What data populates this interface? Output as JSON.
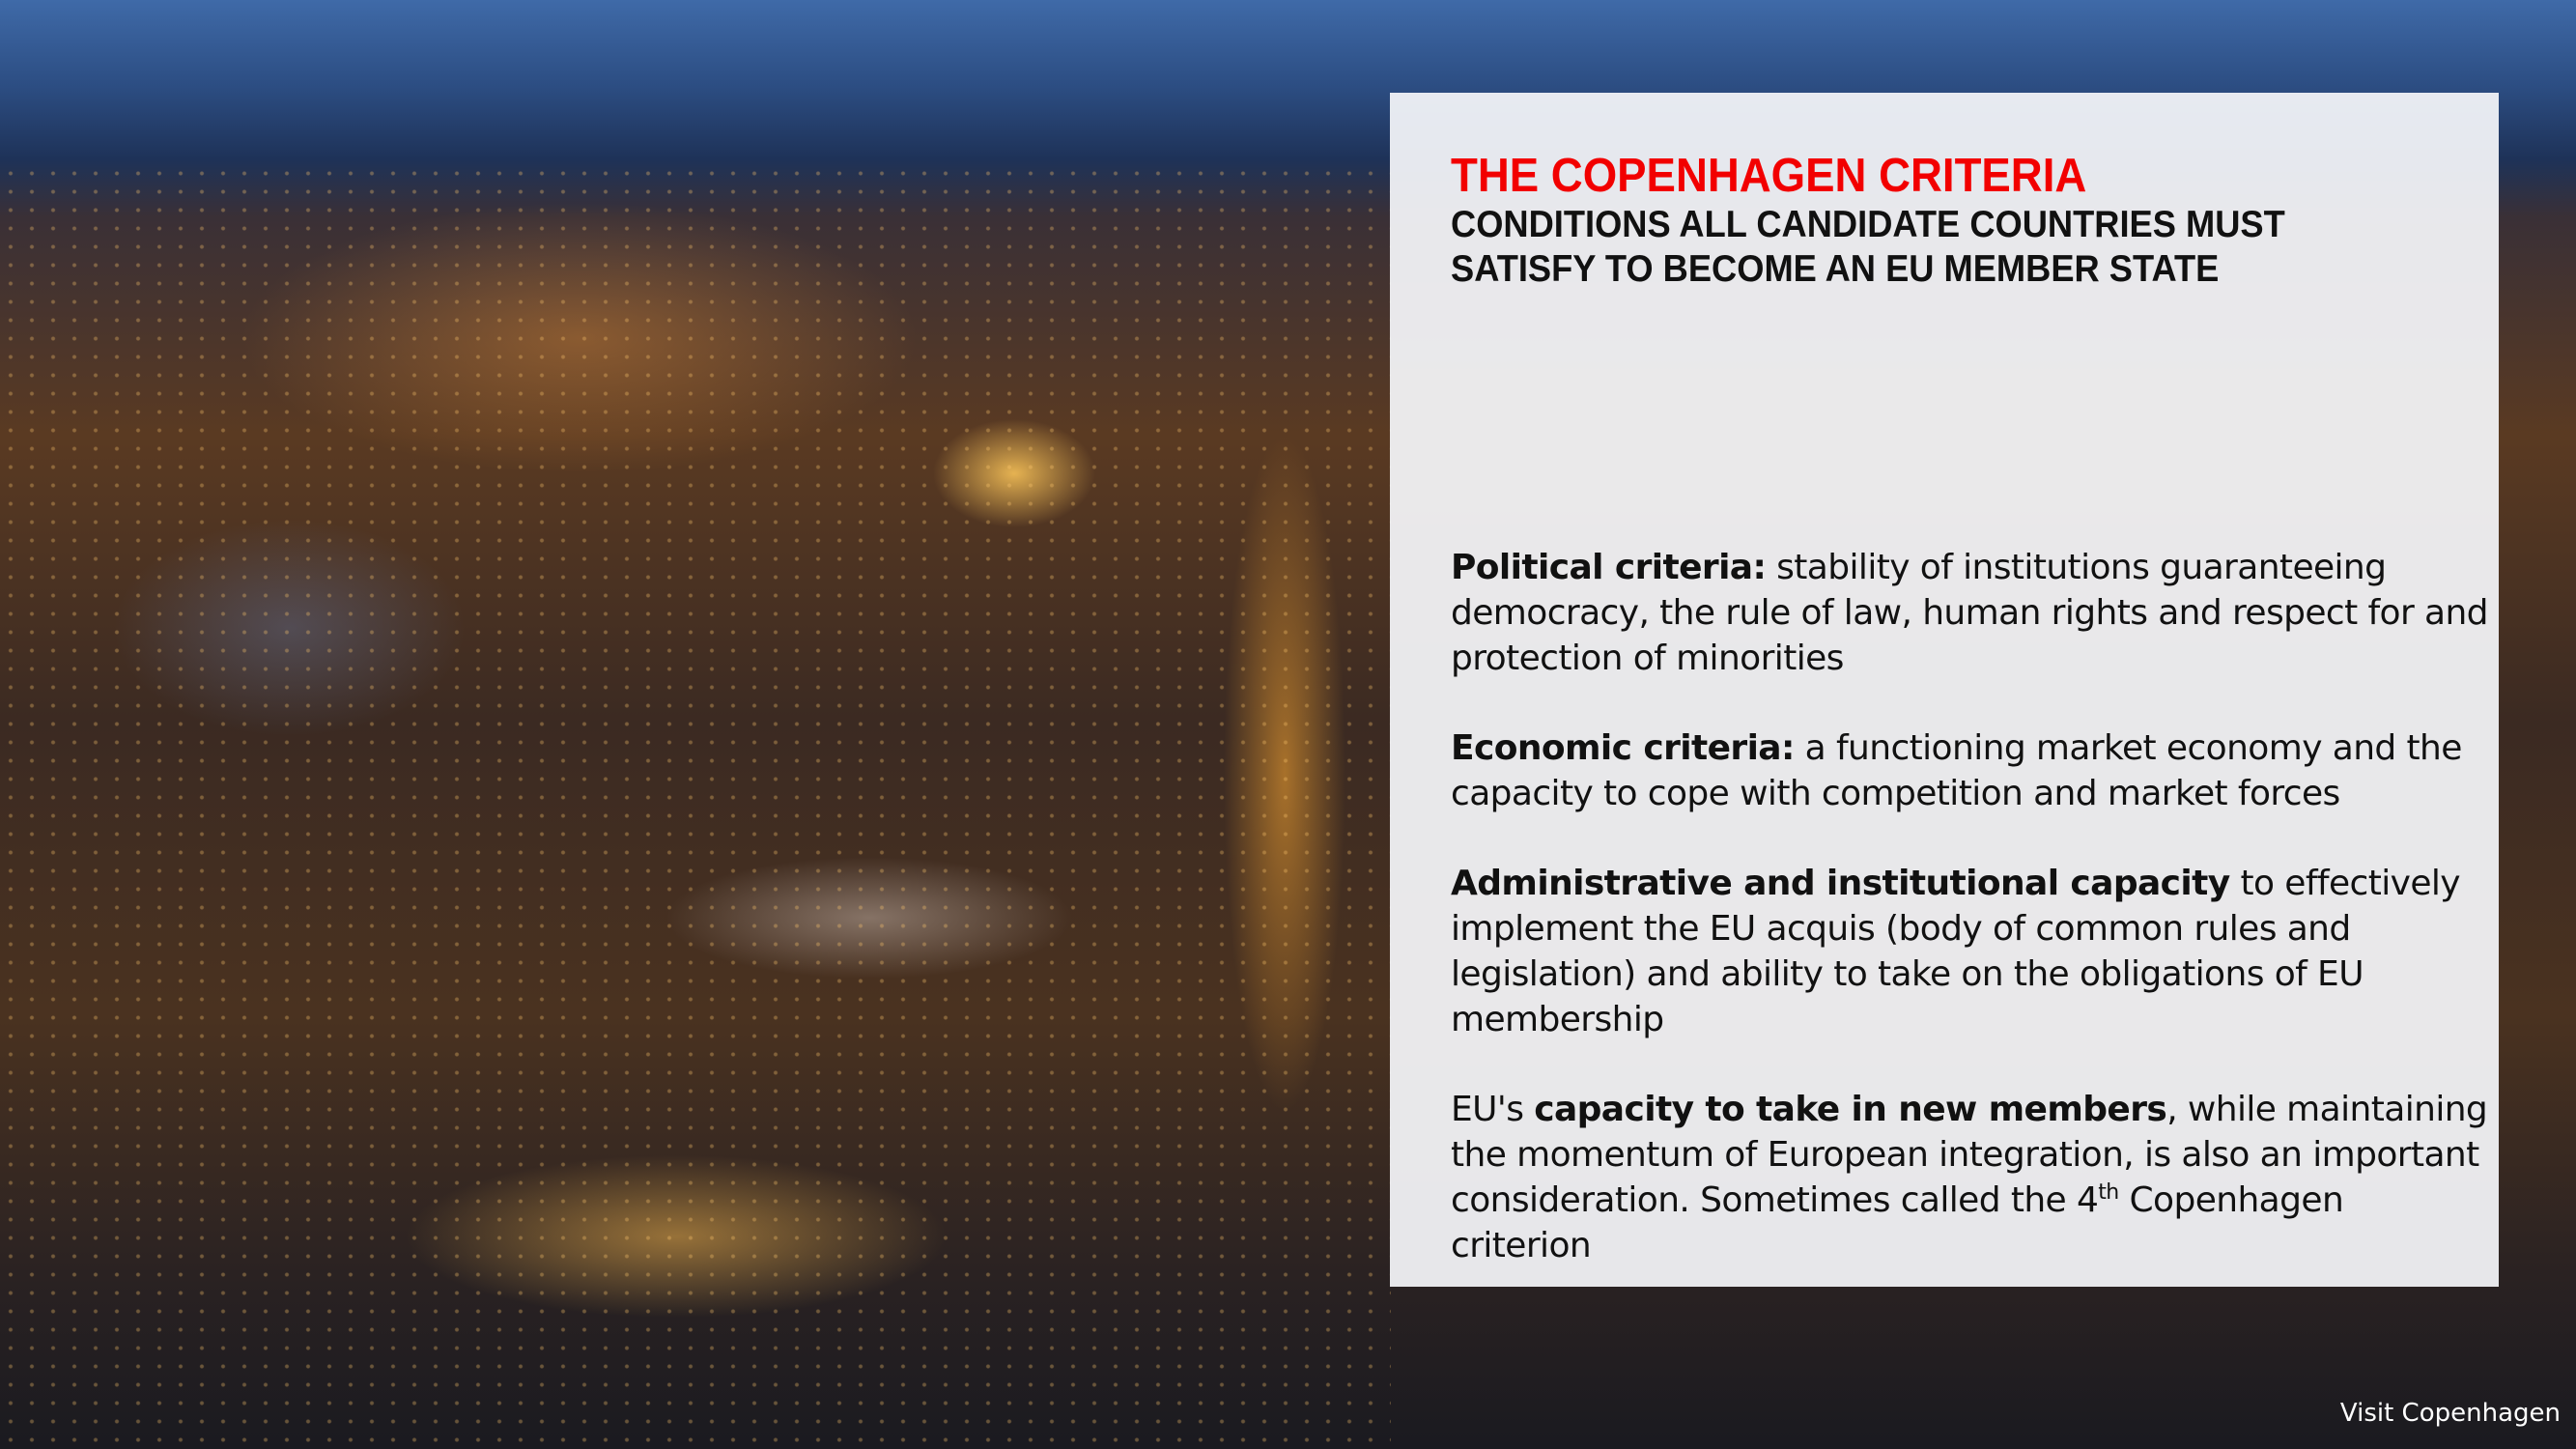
{
  "slide": {
    "title": "THE COPENHAGEN CRITERIA",
    "subtitle": "CONDITIONS ALL CANDIDATE COUNTRIES MUST SATISFY TO BECOME AN EU MEMBER STATE",
    "items": [
      {
        "bold": "Political criteria:",
        "text": " stability of institutions guaranteeing democracy, the rule of law, human rights and respect for and protection of minorities"
      },
      {
        "bold": "Economic criteria:",
        "text": " a functioning market economy and the capacity to cope with competition and market forces"
      },
      {
        "bold": "Administrative and institutional capacity",
        "text": " to effectively implement the EU acquis (body of common rules and legislation) and ability to take on the obligations of EU membership"
      },
      {
        "prefix": "EU's ",
        "bold": "capacity to take in new members",
        "text": ", while maintaining the momentum of European integration, is also an important consideration. Sometimes called the ",
        "num": "4",
        "sup": "th",
        "suffix": " Copenhagen criterion"
      }
    ],
    "photo_credit": "Visit Copenhagen",
    "colors": {
      "title": "#f20000",
      "panel": "#f5f6fa"
    }
  }
}
